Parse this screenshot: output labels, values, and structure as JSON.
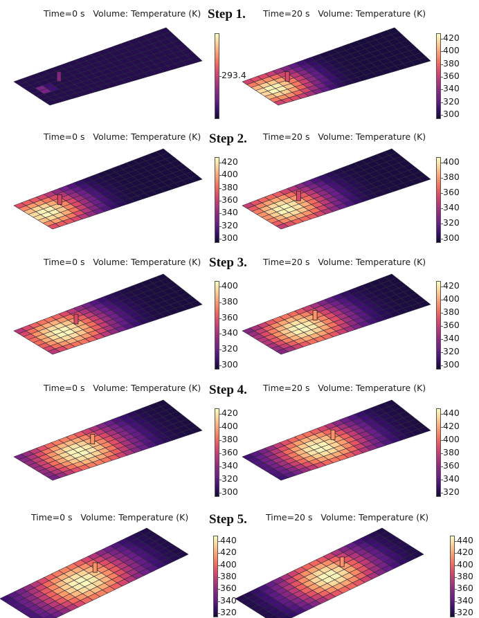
{
  "colors": {
    "colormap": [
      "#140b34",
      "#3b0f70",
      "#6a1e8a",
      "#8c2981",
      "#b73779",
      "#de4968",
      "#f7705c",
      "#fe9f6d",
      "#fecf92",
      "#fcfdbf"
    ],
    "grid_line": "#2b2b3a",
    "background": "#ffffff"
  },
  "steps": [
    {
      "label": "Step 1.",
      "left": {
        "title": "Time=0 s   Volume: Temperature (K)",
        "ticks": [
          "293.4"
        ],
        "heat": 0.05,
        "hotspot": [
          0.09,
          0.5
        ],
        "spread": 0.06,
        "peak": 0.55
      },
      "right": {
        "title": "Time=20 s   Volume: Temperature (K)",
        "ticks": [
          "420",
          "400",
          "380",
          "360",
          "340",
          "320",
          "300"
        ],
        "heat": 0.0,
        "hotspot": [
          0.09,
          0.5
        ],
        "spread": 0.28,
        "peak": 1.0
      }
    },
    {
      "label": "Step 2.",
      "left": {
        "title": "Time=0 s   Volume: Temperature (K)",
        "ticks": [
          "420",
          "400",
          "380",
          "360",
          "340",
          "320",
          "300"
        ],
        "heat": 0.0,
        "hotspot": [
          0.09,
          0.5
        ],
        "spread": 0.3,
        "peak": 1.0
      },
      "right": {
        "title": "Time=20 s   Volume: Temperature (K)",
        "ticks": [
          "400",
          "380",
          "360",
          "340",
          "320",
          "300"
        ],
        "heat": 0.0,
        "hotspot": [
          0.16,
          0.5
        ],
        "spread": 0.32,
        "peak": 1.0
      }
    },
    {
      "label": "Step 3.",
      "left": {
        "title": "Time=0 s   Volume: Temperature (K)",
        "ticks": [
          "400",
          "380",
          "360",
          "340",
          "320",
          "300"
        ],
        "heat": 0.0,
        "hotspot": [
          0.2,
          0.5
        ],
        "spread": 0.34,
        "peak": 1.0
      },
      "right": {
        "title": "Time=20 s   Volume: Temperature (K)",
        "ticks": [
          "420",
          "400",
          "380",
          "360",
          "340",
          "320",
          "300"
        ],
        "heat": 0.0,
        "hotspot": [
          0.27,
          0.5
        ],
        "spread": 0.34,
        "peak": 1.0
      }
    },
    {
      "label": "Step 4.",
      "left": {
        "title": "Time=0 s   Volume: Temperature (K)",
        "ticks": [
          "420",
          "400",
          "380",
          "360",
          "340",
          "320",
          "300"
        ],
        "heat": 0.0,
        "hotspot": [
          0.31,
          0.5
        ],
        "spread": 0.36,
        "peak": 1.0
      },
      "right": {
        "title": "Time=20 s   Volume: Temperature (K)",
        "ticks": [
          "440",
          "420",
          "400",
          "380",
          "360",
          "340",
          "320"
        ],
        "heat": 0.0,
        "hotspot": [
          0.39,
          0.5
        ],
        "spread": 0.34,
        "peak": 1.0
      }
    },
    {
      "label": "Step 5.",
      "left": {
        "title": "Time=0 s   Volume: Temperature (K)",
        "ticks": [
          "440",
          "420",
          "400",
          "380",
          "360",
          "340",
          "320"
        ],
        "heat": 0.0,
        "hotspot": [
          0.42,
          0.5
        ],
        "spread": 0.36,
        "peak": 1.0
      },
      "right": {
        "title": "Time=20 s   Volume: Temperature (K)",
        "ticks": [
          "440",
          "420",
          "400",
          "380",
          "360",
          "340",
          "320"
        ],
        "heat": 0.0,
        "hotspot": [
          0.5,
          0.5
        ],
        "spread": 0.32,
        "peak": 1.0
      }
    }
  ],
  "chart_data": {
    "type": "heatmap",
    "description_axes": "Temperature (K)",
    "panels": [
      {
        "step": "Step 1.",
        "time_s": 0,
        "colorbar_ticks": [
          293.4
        ]
      },
      {
        "step": "Step 1.",
        "time_s": 20,
        "colorbar_ticks": [
          300,
          320,
          340,
          360,
          380,
          400,
          420
        ]
      },
      {
        "step": "Step 2.",
        "time_s": 0,
        "colorbar_ticks": [
          300,
          320,
          340,
          360,
          380,
          400,
          420
        ]
      },
      {
        "step": "Step 2.",
        "time_s": 20,
        "colorbar_ticks": [
          300,
          320,
          340,
          360,
          380,
          400
        ]
      },
      {
        "step": "Step 3.",
        "time_s": 0,
        "colorbar_ticks": [
          300,
          320,
          340,
          360,
          380,
          400
        ]
      },
      {
        "step": "Step 3.",
        "time_s": 20,
        "colorbar_ticks": [
          300,
          320,
          340,
          360,
          380,
          400,
          420
        ]
      },
      {
        "step": "Step 4.",
        "time_s": 0,
        "colorbar_ticks": [
          300,
          320,
          340,
          360,
          380,
          400,
          420
        ]
      },
      {
        "step": "Step 4.",
        "time_s": 20,
        "colorbar_ticks": [
          320,
          340,
          360,
          380,
          400,
          420,
          440
        ]
      },
      {
        "step": "Step 5.",
        "time_s": 0,
        "colorbar_ticks": [
          320,
          340,
          360,
          380,
          400,
          420,
          440
        ]
      },
      {
        "step": "Step 5.",
        "time_s": 20,
        "colorbar_ticks": [
          320,
          340,
          360,
          380,
          400,
          420,
          440
        ]
      }
    ]
  }
}
